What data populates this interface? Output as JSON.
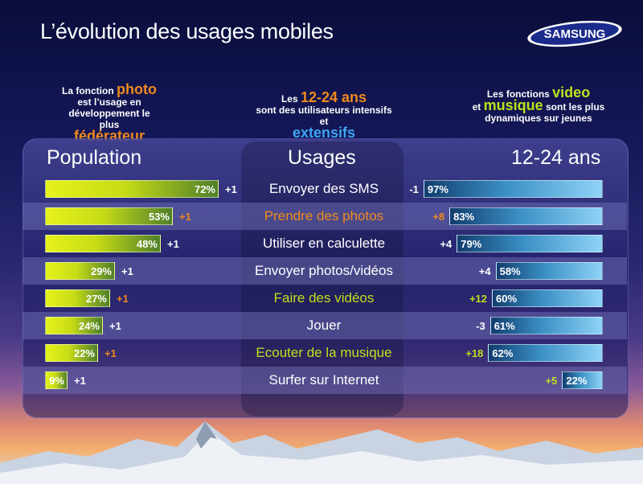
{
  "title": "L’évolution des usages mobiles",
  "brand": "SAMSUNG",
  "intro": {
    "left": {
      "pre": "La fonction",
      "hl1": "photo",
      "mid": "est l’usage en développement le plus",
      "hl2": "fédérateur"
    },
    "center": {
      "pre": "Les",
      "hl1": "12-24 ans",
      "mid": "sont des utilisateurs intensifs et",
      "hl2": "extensifs"
    },
    "right": {
      "pre": "Les fonctions",
      "hl1": "video",
      "mid1": "et",
      "hl2": "musique",
      "post": "sont les plus dynamiques sur jeunes"
    }
  },
  "colors": {
    "orange": "#f08a1e",
    "green": "#bfe11a",
    "blue": "#3fa6f2",
    "white": "#ffffff"
  },
  "chart_data": {
    "type": "bar",
    "headers": {
      "left": "Population",
      "center": "Usages",
      "right": "12-24 ans"
    },
    "categories": [
      "Envoyer des SMS",
      "Prendre des photos",
      "Utiliser en calculette",
      "Envoyer photos/vidéos",
      "Faire des vidéos",
      "Jouer",
      "Ecouter de la musique",
      "Surfer sur Internet"
    ],
    "category_colors": [
      "white",
      "orange",
      "white",
      "white",
      "green",
      "white",
      "green",
      "white"
    ],
    "series": [
      {
        "name": "Population",
        "values": [
          72,
          53,
          48,
          29,
          27,
          24,
          22,
          9
        ],
        "labels": [
          "72%",
          "53%",
          "48%",
          "29%",
          "27%",
          "24%",
          "22%",
          "9%"
        ],
        "deltas": [
          "+1",
          "+1",
          "+1",
          "+1",
          "+1",
          "+1",
          "+1",
          "+1"
        ],
        "delta_colors": [
          "white",
          "orange",
          "white",
          "white",
          "orange",
          "white",
          "orange",
          "white"
        ]
      },
      {
        "name": "12-24 ans",
        "values": [
          97,
          83,
          79,
          58,
          60,
          61,
          62,
          22
        ],
        "labels": [
          "97%",
          "83%",
          "79%",
          "58%",
          "60%",
          "61%",
          "62%",
          "22%"
        ],
        "deltas": [
          "-1",
          "+8",
          "+4",
          "+4",
          "+12",
          "-3",
          "+18",
          "+5"
        ],
        "delta_colors": [
          "white",
          "orange",
          "white",
          "white",
          "green",
          "white",
          "green",
          "green"
        ]
      }
    ],
    "ylim": [
      0,
      100
    ]
  }
}
